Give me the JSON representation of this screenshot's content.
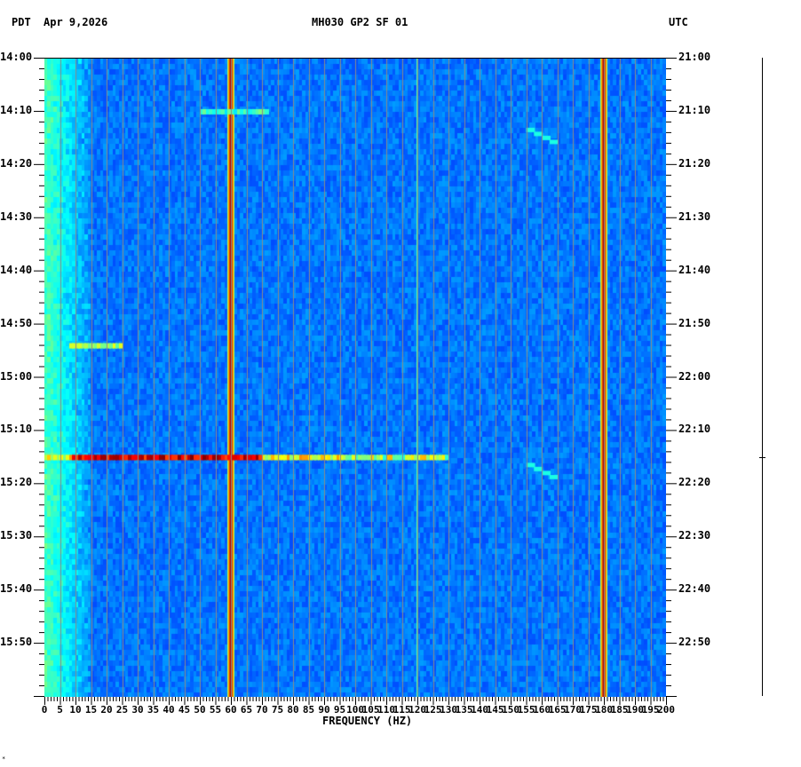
{
  "header": {
    "left_tz": "PDT",
    "date": "Apr 9,2026",
    "station": "MH030 GP2 SF 01",
    "right_tz": "UTC"
  },
  "footer": {
    "marker": "*"
  },
  "chart_data": {
    "type": "heatmap",
    "title": "MH030 GP2 SF 01",
    "subtitle": "Apr 9,2026",
    "xlabel": "FREQUENCY (HZ)",
    "ylabel_left": "PDT",
    "ylabel_right": "UTC",
    "xlim": [
      0,
      200
    ],
    "x_ticks": [
      0,
      5,
      10,
      15,
      20,
      25,
      30,
      35,
      40,
      45,
      50,
      55,
      60,
      65,
      70,
      75,
      80,
      85,
      90,
      95,
      100,
      105,
      110,
      115,
      120,
      125,
      130,
      135,
      140,
      145,
      150,
      155,
      160,
      165,
      170,
      175,
      180,
      185,
      190,
      195,
      200
    ],
    "y_ticks_left": [
      "14:00",
      "14:10",
      "14:20",
      "14:30",
      "14:40",
      "14:50",
      "15:00",
      "15:10",
      "15:20",
      "15:30",
      "15:40",
      "15:50"
    ],
    "y_ticks_right": [
      "21:00",
      "21:10",
      "21:20",
      "21:30",
      "21:40",
      "21:50",
      "22:00",
      "22:10",
      "22:20",
      "22:30",
      "22:40",
      "22:50"
    ],
    "time_range_pdt": [
      "14:00",
      "16:00"
    ],
    "colormap": "jet (blue low → red high)",
    "background_level": "low (blue)",
    "grid": "vertical lines every 5 Hz",
    "features": [
      {
        "type": "persistent_line",
        "freq_hz": 60,
        "intensity": "high",
        "color": "red/yellow"
      },
      {
        "type": "persistent_line",
        "freq_hz": 180,
        "intensity": "high",
        "color": "red/yellow"
      },
      {
        "type": "persistent_line",
        "freq_hz": 120,
        "intensity": "medium",
        "color": "cyan"
      },
      {
        "type": "broadband_burst",
        "time_pdt": "15:15",
        "freq_range_hz": [
          0,
          130
        ],
        "intensity": "very high (dark red) 8–70 Hz"
      },
      {
        "type": "broadband_burst",
        "time_pdt": "14:54",
        "freq_range_hz": [
          8,
          25
        ],
        "intensity": "medium"
      },
      {
        "type": "broadband_burst",
        "time_pdt": "14:10",
        "freq_range_hz": [
          50,
          72
        ],
        "intensity": "low-medium"
      },
      {
        "type": "sweep",
        "time_pdt": "14:13-14:16",
        "freq_range_hz": [
          155,
          165
        ]
      },
      {
        "type": "sweep",
        "time_pdt": "15:16-15:19",
        "freq_range_hz": [
          155,
          165
        ]
      },
      {
        "type": "low_freq_noise",
        "freq_range_hz": [
          0,
          15
        ],
        "intensity": "medium (light blue)"
      }
    ]
  }
}
